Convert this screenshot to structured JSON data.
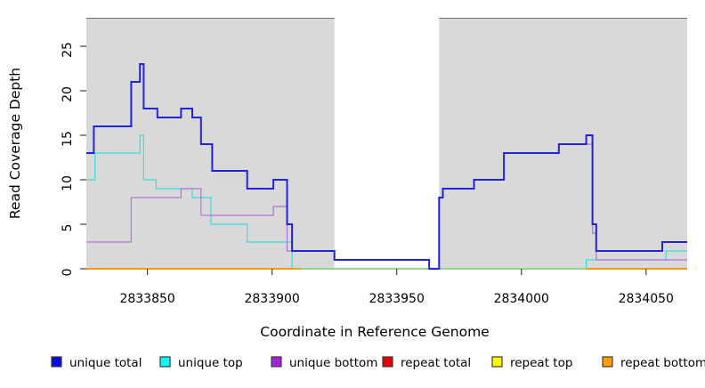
{
  "figure": {
    "y_axis": {
      "label": "Read Coverage Depth",
      "ticks": [
        0,
        5,
        10,
        15,
        20,
        25
      ]
    },
    "x_axis": {
      "label": "Coordinate in Reference Genome",
      "ticks": [
        2833850,
        2833900,
        2833950,
        2834000,
        2834050
      ]
    },
    "legend": [
      {
        "label": "unique total",
        "color": "#0b0be6"
      },
      {
        "label": "unique top",
        "color": "#00ffff"
      },
      {
        "label": "unique bottom",
        "color": "#a424d4"
      },
      {
        "label": "repeat total",
        "color": "#e80000"
      },
      {
        "label": "repeat top",
        "color": "#ffff00"
      },
      {
        "label": "repeat bottom",
        "color": "#ffa000"
      }
    ]
  },
  "chart_data": {
    "type": "line",
    "subtype": "step-coverage",
    "title": "",
    "xlabel": "Coordinate in Reference Genome",
    "ylabel": "Read Coverage Depth",
    "xlim": [
      2833825.5,
      2834066.5
    ],
    "ylim": [
      0,
      28.2
    ],
    "x_ticks": [
      2833850,
      2833900,
      2833950,
      2834000,
      2834050
    ],
    "y_ticks": [
      0,
      5,
      10,
      15,
      20,
      25
    ],
    "grid": false,
    "legend_position": "bottom",
    "plot_bg": "#d9d9d9",
    "no_data_band": {
      "from": 2833925,
      "to": 2833967,
      "color": "#ffffff"
    },
    "series": [
      {
        "name": "repeat total",
        "color": "#e80000",
        "width": 1.3,
        "steps": [
          [
            2833825.5,
            0
          ]
        ]
      },
      {
        "name": "repeat top",
        "color": "#ffff00",
        "width": 1.3,
        "steps": [
          [
            2833825.5,
            0
          ]
        ]
      },
      {
        "name": "repeat bottom",
        "color": "#ff9400",
        "width": 1.6,
        "steps": [
          [
            2833825.5,
            0
          ]
        ]
      },
      {
        "name": "unique top",
        "color": "#35dfdf",
        "width": 1.2,
        "steps": [
          [
            2833825.5,
            10
          ],
          [
            2833829,
            13
          ],
          [
            2833847,
            15
          ],
          [
            2833848.5,
            10
          ],
          [
            2833853.5,
            9
          ],
          [
            2833868,
            8
          ],
          [
            2833875.5,
            5
          ],
          [
            2833890,
            3
          ],
          [
            2833908,
            0
          ],
          [
            2834026,
            1
          ],
          [
            2834058,
            2
          ]
        ]
      },
      {
        "name": "unique bottom",
        "color": "#b472dc",
        "width": 1.2,
        "steps": [
          [
            2833825.5,
            3
          ],
          [
            2833843.5,
            8
          ],
          [
            2833863.5,
            9
          ],
          [
            2833871.5,
            6
          ],
          [
            2833900.5,
            7
          ],
          [
            2833906,
            2
          ],
          [
            2833925,
            1
          ],
          [
            2833963,
            0
          ],
          [
            2833967,
            8
          ],
          [
            2833968.5,
            9
          ],
          [
            2833981,
            10
          ],
          [
            2833993,
            13
          ],
          [
            2834015,
            14
          ],
          [
            2834028.5,
            4
          ],
          [
            2834030,
            1
          ]
        ]
      },
      {
        "name": "unique total",
        "color": "#2222dd",
        "width": 2,
        "steps": [
          [
            2833825.5,
            13
          ],
          [
            2833828.5,
            16
          ],
          [
            2833843.5,
            21
          ],
          [
            2833847,
            23
          ],
          [
            2833848.5,
            18
          ],
          [
            2833854,
            17
          ],
          [
            2833863.5,
            18
          ],
          [
            2833868,
            17
          ],
          [
            2833871.5,
            14
          ],
          [
            2833876,
            11
          ],
          [
            2833890,
            9
          ],
          [
            2833900.5,
            10
          ],
          [
            2833906,
            5
          ],
          [
            2833908,
            2
          ],
          [
            2833925,
            1
          ],
          [
            2833963,
            0
          ],
          [
            2833967,
            8
          ],
          [
            2833968.5,
            9
          ],
          [
            2833981,
            10
          ],
          [
            2833993,
            13
          ],
          [
            2834015,
            14
          ],
          [
            2834026,
            15
          ],
          [
            2834028.5,
            5
          ],
          [
            2834030,
            2
          ],
          [
            2834056.5,
            3
          ]
        ]
      }
    ],
    "zero_line_segments": [
      {
        "from": 2833825.5,
        "to": 2833911.5,
        "color": "#ff9400",
        "width": 1.6
      },
      {
        "from": 2833911.5,
        "to": 2834026,
        "color": "#85dc96",
        "width": 1.4
      },
      {
        "from": 2834026,
        "to": 2834066.5,
        "color": "#ff9400",
        "width": 1.6
      }
    ],
    "draw_order": [
      "repeat total",
      "repeat top",
      "repeat bottom",
      "unique top",
      "unique bottom",
      "zero_overlay",
      "unique total"
    ]
  }
}
